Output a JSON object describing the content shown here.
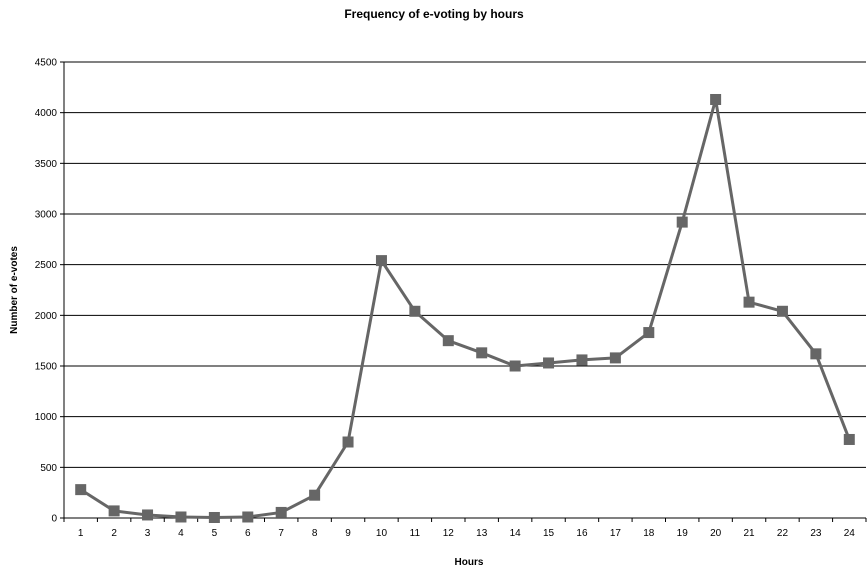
{
  "chart_data": {
    "type": "line",
    "title": "Frequency of e-voting by hours",
    "xlabel": "Hours",
    "ylabel": "Number of e-votes",
    "ylim": [
      0,
      4500
    ],
    "yticks": [
      0,
      500,
      1000,
      1500,
      2000,
      2500,
      3000,
      3500,
      4000,
      4500
    ],
    "categories": [
      "1",
      "2",
      "3",
      "4",
      "5",
      "6",
      "7",
      "8",
      "9",
      "10",
      "11",
      "12",
      "13",
      "14",
      "15",
      "16",
      "17",
      "18",
      "19",
      "20",
      "21",
      "22",
      "23",
      "24"
    ],
    "series": [
      {
        "values": [
          280,
          70,
          30,
          10,
          5,
          10,
          55,
          225,
          750,
          2540,
          2040,
          1750,
          1630,
          1500,
          1530,
          1560,
          1580,
          1830,
          2920,
          4130,
          2130,
          2040,
          1620,
          775
        ],
        "color": "#666666",
        "marker": "square"
      }
    ],
    "grid": true,
    "legend": "none"
  }
}
